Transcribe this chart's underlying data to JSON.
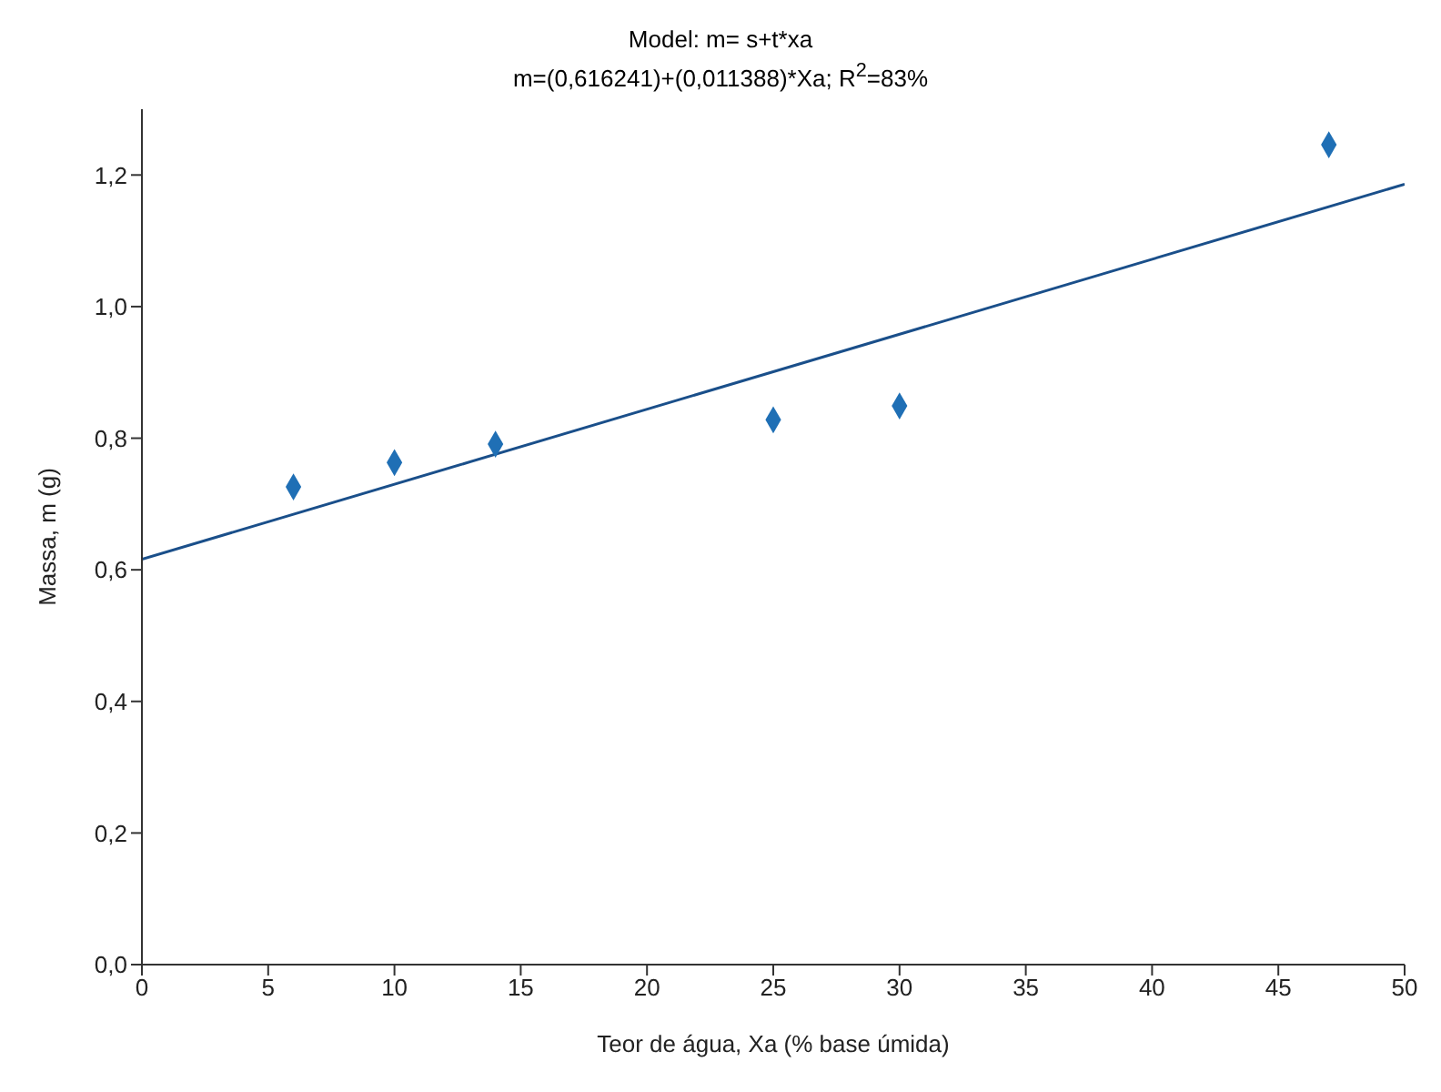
{
  "chart_data": {
    "type": "scatter",
    "title": "Model: m= s+t*xa",
    "subtitle": "m=(0,616241)+(0,011388)*Xa; R$^{2}$=83%",
    "xlabel": "Teor de água, Xa (% base úmida)",
    "ylabel": "Massa, m (g)",
    "x": [
      6,
      10,
      14,
      25,
      30,
      47
    ],
    "series": [
      {
        "color": "#1f6fb5",
        "marker": "diamond",
        "values": [
          0.726,
          0.763,
          0.791,
          0.828,
          0.849,
          1.246
        ]
      },
      {
        "type": "line",
        "color": "#1a4f8a",
        "marker": "none",
        "x": [
          0,
          50
        ],
        "values": [
          0.616,
          1.186
        ]
      }
    ],
    "xlim": [
      0,
      50
    ],
    "xticks": [
      0,
      5,
      10,
      15,
      20,
      25,
      30,
      35,
      40,
      45,
      50
    ],
    "ylim": [
      0,
      1.3
    ],
    "yticks": [
      {
        "value": 0,
        "label": "0,0"
      },
      {
        "value": 0.2,
        "label": "0,2"
      },
      {
        "value": 0.4,
        "label": "0,4"
      },
      {
        "value": 0.6,
        "label": "0,6"
      },
      {
        "value": 0.8,
        "label": "0,8"
      },
      {
        "value": 1,
        "label": "1,0"
      },
      {
        "value": 1.2,
        "label": "1,2"
      }
    ],
    "grid": false,
    "line_style": "solid"
  }
}
